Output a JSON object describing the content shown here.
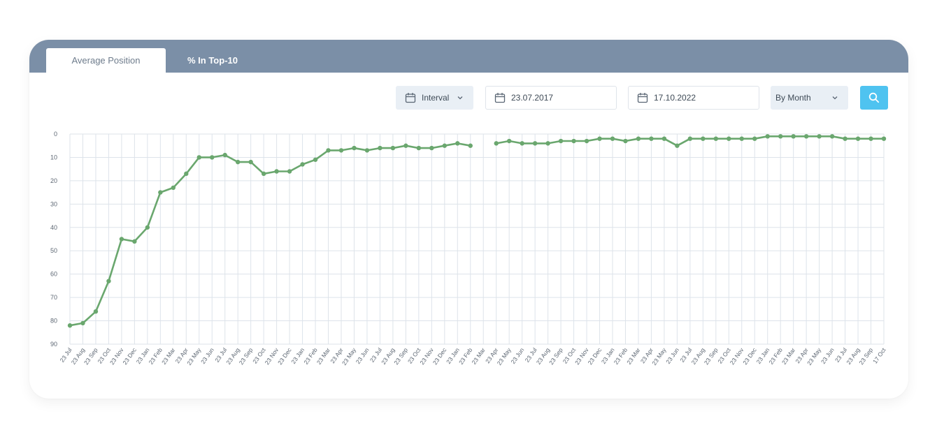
{
  "tabs": [
    {
      "label": "Average Position",
      "active": true
    },
    {
      "label": "% In Top-10",
      "active": false
    }
  ],
  "controls": {
    "interval_label": "Interval",
    "date_from": "23.07.2017",
    "date_to": "17.10.2022",
    "granularity": "By Month"
  },
  "colors": {
    "header_bg": "#7b8fa7",
    "line": "#6aa76e",
    "accent": "#4fc3f0",
    "grid": "#dde3ea"
  },
  "chart_data": {
    "type": "line",
    "title": "",
    "xlabel": "",
    "ylabel": "",
    "y_reversed": true,
    "ylim": [
      0,
      90
    ],
    "yticks": [
      0,
      10,
      20,
      30,
      40,
      50,
      60,
      70,
      80,
      90
    ],
    "grid": true,
    "categories": [
      "23 Jul",
      "23 Aug",
      "23 Sep",
      "23 Oct",
      "23 Nov",
      "23 Dec",
      "23 Jan",
      "23 Feb",
      "23 Mar",
      "23 Apr",
      "23 May",
      "23 Jun",
      "23 Jul",
      "23 Aug",
      "23 Sep",
      "23 Oct",
      "23 Nov",
      "23 Dec",
      "23 Jan",
      "23 Feb",
      "23 Mar",
      "23 Apr",
      "23 May",
      "23 Jun",
      "23 Jul",
      "23 Aug",
      "23 Sep",
      "23 Oct",
      "23 Nov",
      "23 Dec",
      "23 Jan",
      "23 Feb",
      "23 Mar",
      "23 Apr",
      "23 May",
      "23 Jun",
      "23 Jul",
      "23 Aug",
      "23 Sep",
      "23 Oct",
      "23 Nov",
      "23 Dec",
      "23 Jan",
      "23 Feb",
      "23 Mar",
      "23 Apr",
      "23 May",
      "23 Jun",
      "23 Jul",
      "23 Aug",
      "23 Sep",
      "23 Oct",
      "23 Nov",
      "23 Dec",
      "23 Jan",
      "23 Feb",
      "23 Mar",
      "23 Apr",
      "23 May",
      "23 Jun",
      "23 Jul",
      "23 Aug",
      "23 Sep",
      "17 Oct"
    ],
    "series": [
      {
        "values": [
          82,
          81,
          76,
          63,
          45,
          46,
          40,
          25,
          23,
          17,
          10,
          10,
          9,
          12,
          12,
          17,
          16,
          16,
          13,
          11,
          7,
          7,
          6,
          7,
          6,
          6,
          5,
          6,
          6,
          5,
          4,
          5,
          null,
          4,
          3,
          4,
          4,
          4,
          3,
          3,
          3,
          2,
          2,
          3,
          2,
          2,
          2,
          5,
          2,
          2,
          2,
          2,
          2,
          2,
          1,
          1,
          1,
          1,
          1,
          1,
          2,
          2,
          2,
          2
        ]
      }
    ]
  }
}
